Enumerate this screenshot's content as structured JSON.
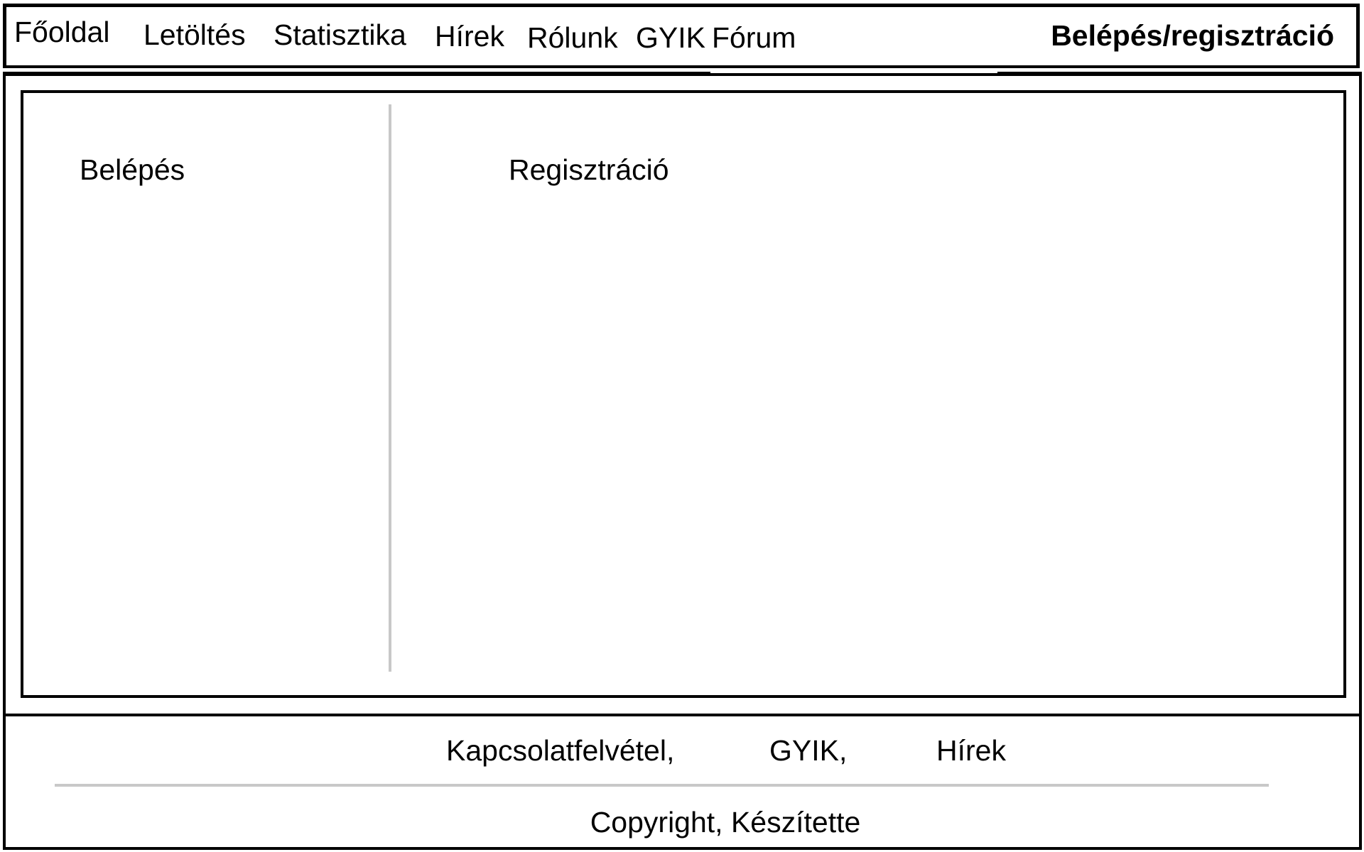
{
  "nav": {
    "items": [
      {
        "label": "Főoldal"
      },
      {
        "label": "Letöltés"
      },
      {
        "label": "Statisztika"
      },
      {
        "label": "Hírek"
      },
      {
        "label": "Rólunk"
      },
      {
        "label": "GYIK"
      },
      {
        "label": "Fórum"
      }
    ],
    "login_label": "Belépés/regisztráció"
  },
  "main": {
    "login_title": "Belépés",
    "register_title": "Regisztráció"
  },
  "footer": {
    "links": [
      {
        "label": "Kapcsolatfelvétel,"
      },
      {
        "label": "GYIK,"
      },
      {
        "label": "Hírek"
      }
    ],
    "copyright": "Copyright, Készítette"
  }
}
